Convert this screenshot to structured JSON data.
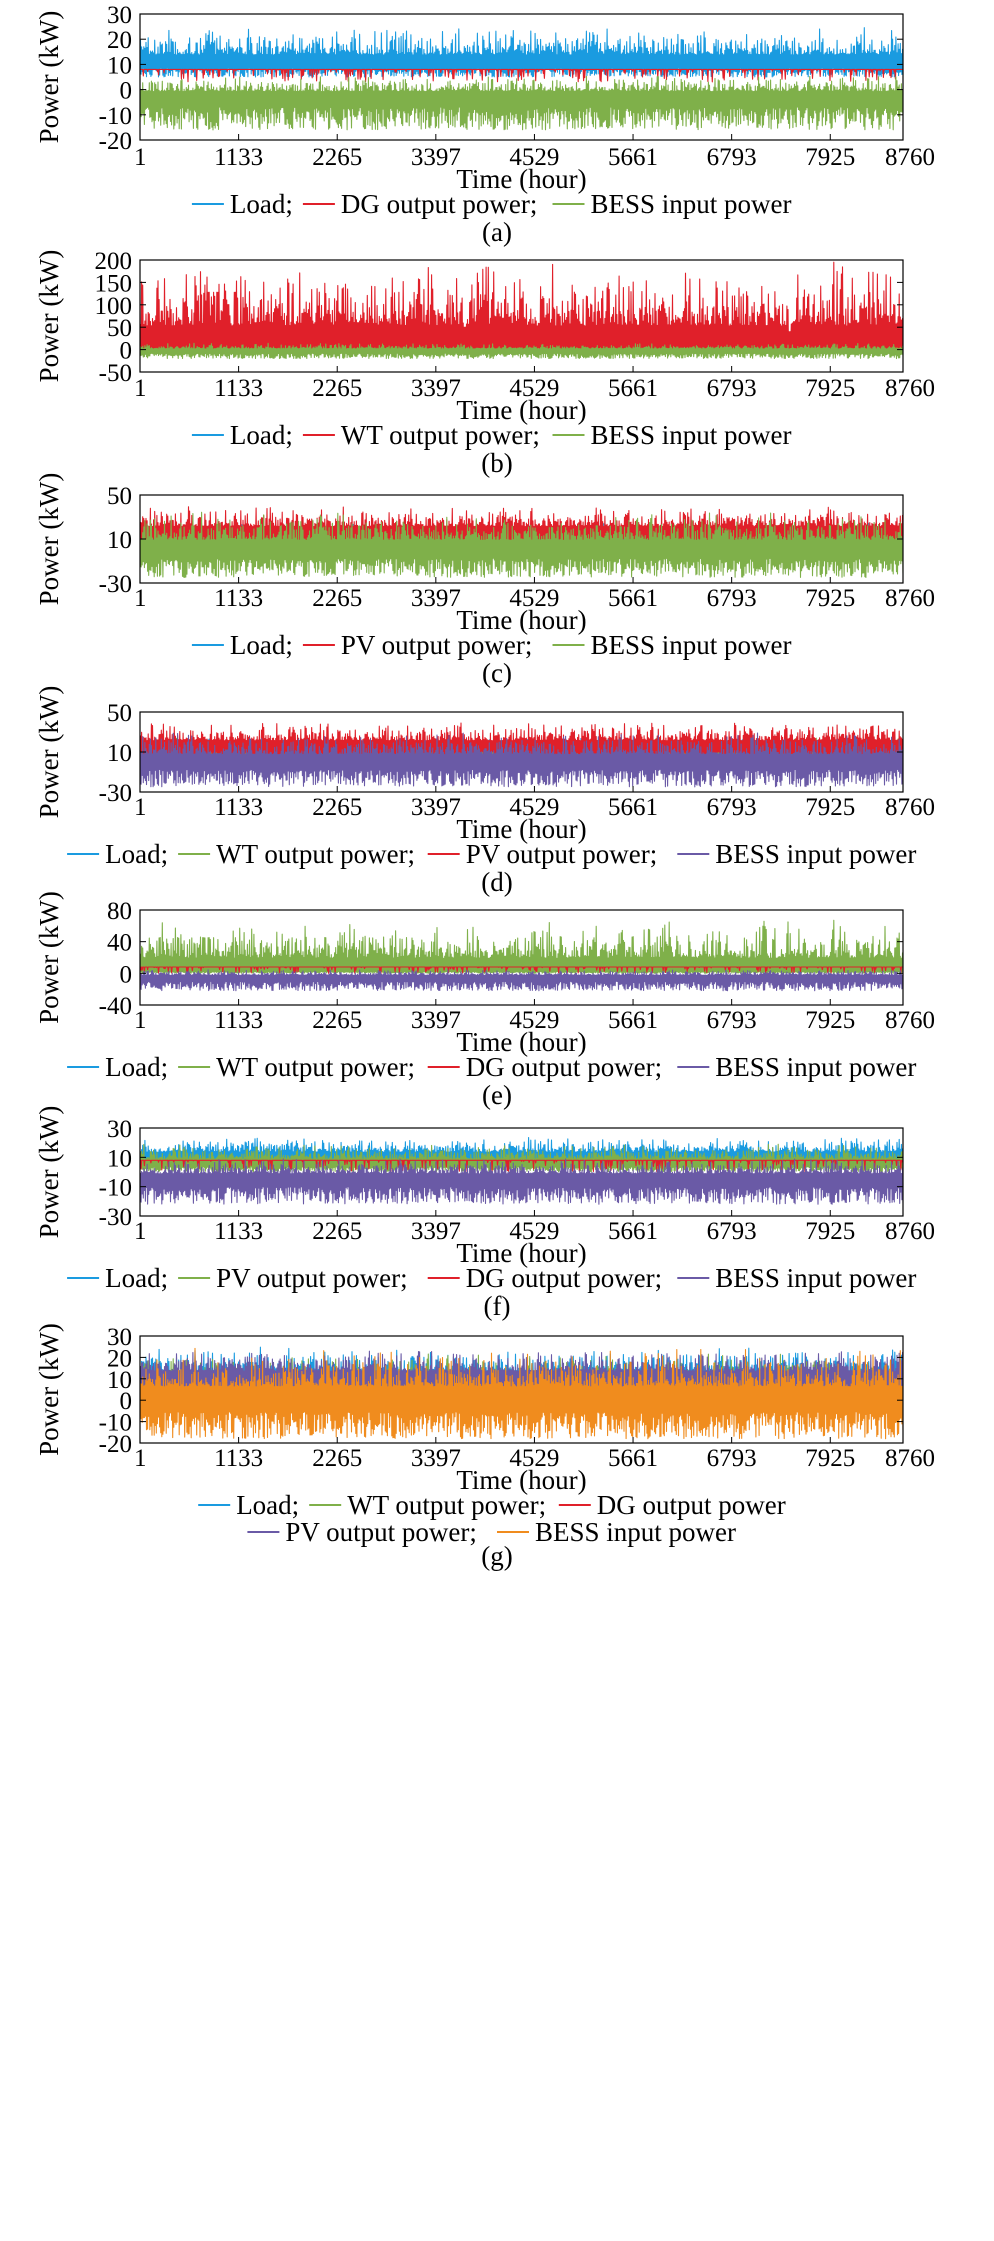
{
  "colors": {
    "Load": "#1a9be0",
    "DG output power": "#e0202a",
    "WT output power": "#7fb04a",
    "PV output power": "#7fb04a",
    "BESS input power": "#7fb04a",
    "BESS purple": "#6a5aa6",
    "BESS orange": "#f08c1e",
    "PV purple": "#6a5aa6"
  },
  "chart_data": [
    {
      "type": "line",
      "panel": "(a)",
      "xlabel": "Time (hour)",
      "ylabel": "Power (kW)",
      "xticks": [
        "1",
        "1133",
        "2265",
        "3397",
        "4529",
        "5661",
        "6793",
        "7925",
        "8760"
      ],
      "xlim": [
        1,
        8760
      ],
      "yticks": [
        "30",
        "20",
        "10",
        "0",
        "-10",
        "-20"
      ],
      "ylim": [
        -20,
        30
      ],
      "legend": [
        {
          "label": "Load;",
          "color": "#1a9be0"
        },
        {
          "label": "DG output power;",
          "color": "#e0202a"
        },
        {
          "label": "BESS input power",
          "color": "#7fb04a"
        }
      ],
      "series": [
        {
          "name": "Load",
          "color": "#1a9be0",
          "min": 5,
          "max": 25,
          "baseline": 10
        },
        {
          "name": "DG output power",
          "color": "#e0202a",
          "min": 3,
          "max": 8,
          "baseline": 8
        },
        {
          "name": "BESS input power",
          "color": "#7fb04a",
          "min": -16,
          "max": 6,
          "baseline": -3
        }
      ]
    },
    {
      "type": "line",
      "panel": "(b)",
      "xlabel": "Time (hour)",
      "ylabel": "Power (kW)",
      "xticks": [
        "1",
        "1133",
        "2265",
        "3397",
        "4529",
        "5661",
        "6793",
        "7925",
        "8760"
      ],
      "xlim": [
        1,
        8760
      ],
      "yticks": [
        "200",
        "150",
        "100",
        "50",
        "0",
        "-50"
      ],
      "ylim": [
        -50,
        200
      ],
      "legend": [
        {
          "label": "Load;",
          "color": "#1a9be0"
        },
        {
          "label": "WT output power;",
          "color": "#e0202a"
        },
        {
          "label": "BESS input power",
          "color": "#7fb04a"
        }
      ],
      "series": [
        {
          "name": "Load",
          "color": "#1a9be0",
          "min": 5,
          "max": 20,
          "baseline": 10
        },
        {
          "name": "WT output power",
          "color": "#e0202a",
          "min": 0,
          "max": 195,
          "baseline": 5
        },
        {
          "name": "BESS input power",
          "color": "#7fb04a",
          "min": -20,
          "max": 15,
          "baseline": -3
        }
      ]
    },
    {
      "type": "line",
      "panel": "(c)",
      "xlabel": "Time (hour)",
      "ylabel": "Power (kW)",
      "xticks": [
        "1",
        "1133",
        "2265",
        "3397",
        "4529",
        "5661",
        "6793",
        "7925",
        "8760"
      ],
      "xlim": [
        1,
        8760
      ],
      "yticks": [
        "50",
        "10",
        "-30"
      ],
      "ylim": [
        -30,
        50
      ],
      "legend": [
        {
          "label": "Load;",
          "color": "#1a9be0"
        },
        {
          "label": "PV output power;",
          "color": "#e0202a"
        },
        {
          "label": "BESS input power",
          "color": "#7fb04a"
        }
      ],
      "series": [
        {
          "name": "Load",
          "color": "#1a9be0",
          "min": 5,
          "max": 25,
          "baseline": 10
        },
        {
          "name": "PV output power",
          "color": "#e0202a",
          "min": 0,
          "max": 40,
          "baseline": 15
        },
        {
          "name": "BESS input power",
          "color": "#7fb04a",
          "min": -25,
          "max": 35,
          "baseline": 0
        }
      ]
    },
    {
      "type": "line",
      "panel": "(d)",
      "xlabel": "Time (hour)",
      "ylabel": "Power (kW)",
      "xticks": [
        "1",
        "1133",
        "2265",
        "3397",
        "4529",
        "5661",
        "6793",
        "7925",
        "8760"
      ],
      "xlim": [
        1,
        8760
      ],
      "yticks": [
        "50",
        "10",
        "-30"
      ],
      "ylim": [
        -30,
        50
      ],
      "legend": [
        {
          "label": "Load;",
          "color": "#1a9be0"
        },
        {
          "label": "WT output power;",
          "color": "#7fb04a"
        },
        {
          "label": "PV output power;",
          "color": "#e0202a"
        },
        {
          "label": "BESS input power",
          "color": "#6a5aa6"
        }
      ],
      "series": [
        {
          "name": "Load",
          "color": "#1a9be0",
          "min": 5,
          "max": 25,
          "baseline": 10
        },
        {
          "name": "WT output power",
          "color": "#7fb04a",
          "min": 0,
          "max": 25,
          "baseline": 5
        },
        {
          "name": "PV output power",
          "color": "#e0202a",
          "min": 0,
          "max": 40,
          "baseline": 15
        },
        {
          "name": "BESS input power",
          "color": "#6a5aa6",
          "min": -25,
          "max": 30,
          "baseline": 0
        }
      ]
    },
    {
      "type": "line",
      "panel": "(e)",
      "xlabel": "Time (hour)",
      "ylabel": "Power (kW)",
      "xticks": [
        "1",
        "1133",
        "2265",
        "3397",
        "4529",
        "5661",
        "6793",
        "7925",
        "8760"
      ],
      "xlim": [
        1,
        8760
      ],
      "yticks": [
        "80",
        "40",
        "0",
        "-40"
      ],
      "ylim": [
        -40,
        80
      ],
      "legend": [
        {
          "label": "Load;",
          "color": "#1a9be0"
        },
        {
          "label": "WT output power;",
          "color": "#7fb04a"
        },
        {
          "label": "DG output power;",
          "color": "#e0202a"
        },
        {
          "label": "BESS input power",
          "color": "#6a5aa6"
        }
      ],
      "series": [
        {
          "name": "Load",
          "color": "#1a9be0",
          "min": 5,
          "max": 20,
          "baseline": 10
        },
        {
          "name": "WT output power",
          "color": "#7fb04a",
          "min": 0,
          "max": 67,
          "baseline": 3
        },
        {
          "name": "DG output power",
          "color": "#e0202a",
          "min": 0,
          "max": 8,
          "baseline": 8
        },
        {
          "name": "BESS input power",
          "color": "#6a5aa6",
          "min": -22,
          "max": 5,
          "baseline": -5
        }
      ]
    },
    {
      "type": "line",
      "panel": "(f)",
      "xlabel": "Time (hour)",
      "ylabel": "Power (kW)",
      "xticks": [
        "1",
        "1133",
        "2265",
        "3397",
        "4529",
        "5661",
        "6793",
        "7925",
        "8760"
      ],
      "xlim": [
        1,
        8760
      ],
      "yticks": [
        "30",
        "10",
        "-10",
        "-30"
      ],
      "ylim": [
        -30,
        30
      ],
      "legend": [
        {
          "label": "Load;",
          "color": "#1a9be0"
        },
        {
          "label": "PV output power;",
          "color": "#7fb04a"
        },
        {
          "label": "DG output power;",
          "color": "#e0202a"
        },
        {
          "label": "BESS input power",
          "color": "#6a5aa6"
        }
      ],
      "series": [
        {
          "name": "Load",
          "color": "#1a9be0",
          "min": 5,
          "max": 24,
          "baseline": 10
        },
        {
          "name": "PV output power",
          "color": "#7fb04a",
          "min": 0,
          "max": 20,
          "baseline": 5
        },
        {
          "name": "DG output power",
          "color": "#e0202a",
          "min": 0,
          "max": 8,
          "baseline": 8
        },
        {
          "name": "BESS input power",
          "color": "#6a5aa6",
          "min": -22,
          "max": 10,
          "baseline": -5
        }
      ]
    },
    {
      "type": "line",
      "panel": "(g)",
      "xlabel": "Time (hour)",
      "ylabel": "Power (kW)",
      "xticks": [
        "1",
        "1133",
        "2265",
        "3397",
        "4529",
        "5661",
        "6793",
        "7925",
        "8760"
      ],
      "xlim": [
        1,
        8760
      ],
      "yticks": [
        "30",
        "20",
        "10",
        "0",
        "-10",
        "-20"
      ],
      "ylim": [
        -20,
        30
      ],
      "legend": [
        {
          "label": "Load;",
          "color": "#1a9be0"
        },
        {
          "label": "WT output power;",
          "color": "#7fb04a"
        },
        {
          "label": "DG output power",
          "color": "#e0202a"
        },
        {
          "label": "PV output power;",
          "color": "#6a5aa6"
        },
        {
          "label": "BESS input power",
          "color": "#f08c1e"
        }
      ],
      "series": [
        {
          "name": "Load",
          "color": "#1a9be0",
          "min": 5,
          "max": 25,
          "baseline": 10
        },
        {
          "name": "WT output power",
          "color": "#7fb04a",
          "min": 0,
          "max": 22,
          "baseline": 5
        },
        {
          "name": "DG output power",
          "color": "#e0202a",
          "min": 0,
          "max": 8,
          "baseline": 8
        },
        {
          "name": "PV output power",
          "color": "#6a5aa6",
          "min": 0,
          "max": 24,
          "baseline": 10
        },
        {
          "name": "BESS input power",
          "color": "#f08c1e",
          "min": -18,
          "max": 25,
          "baseline": 0
        }
      ]
    }
  ]
}
